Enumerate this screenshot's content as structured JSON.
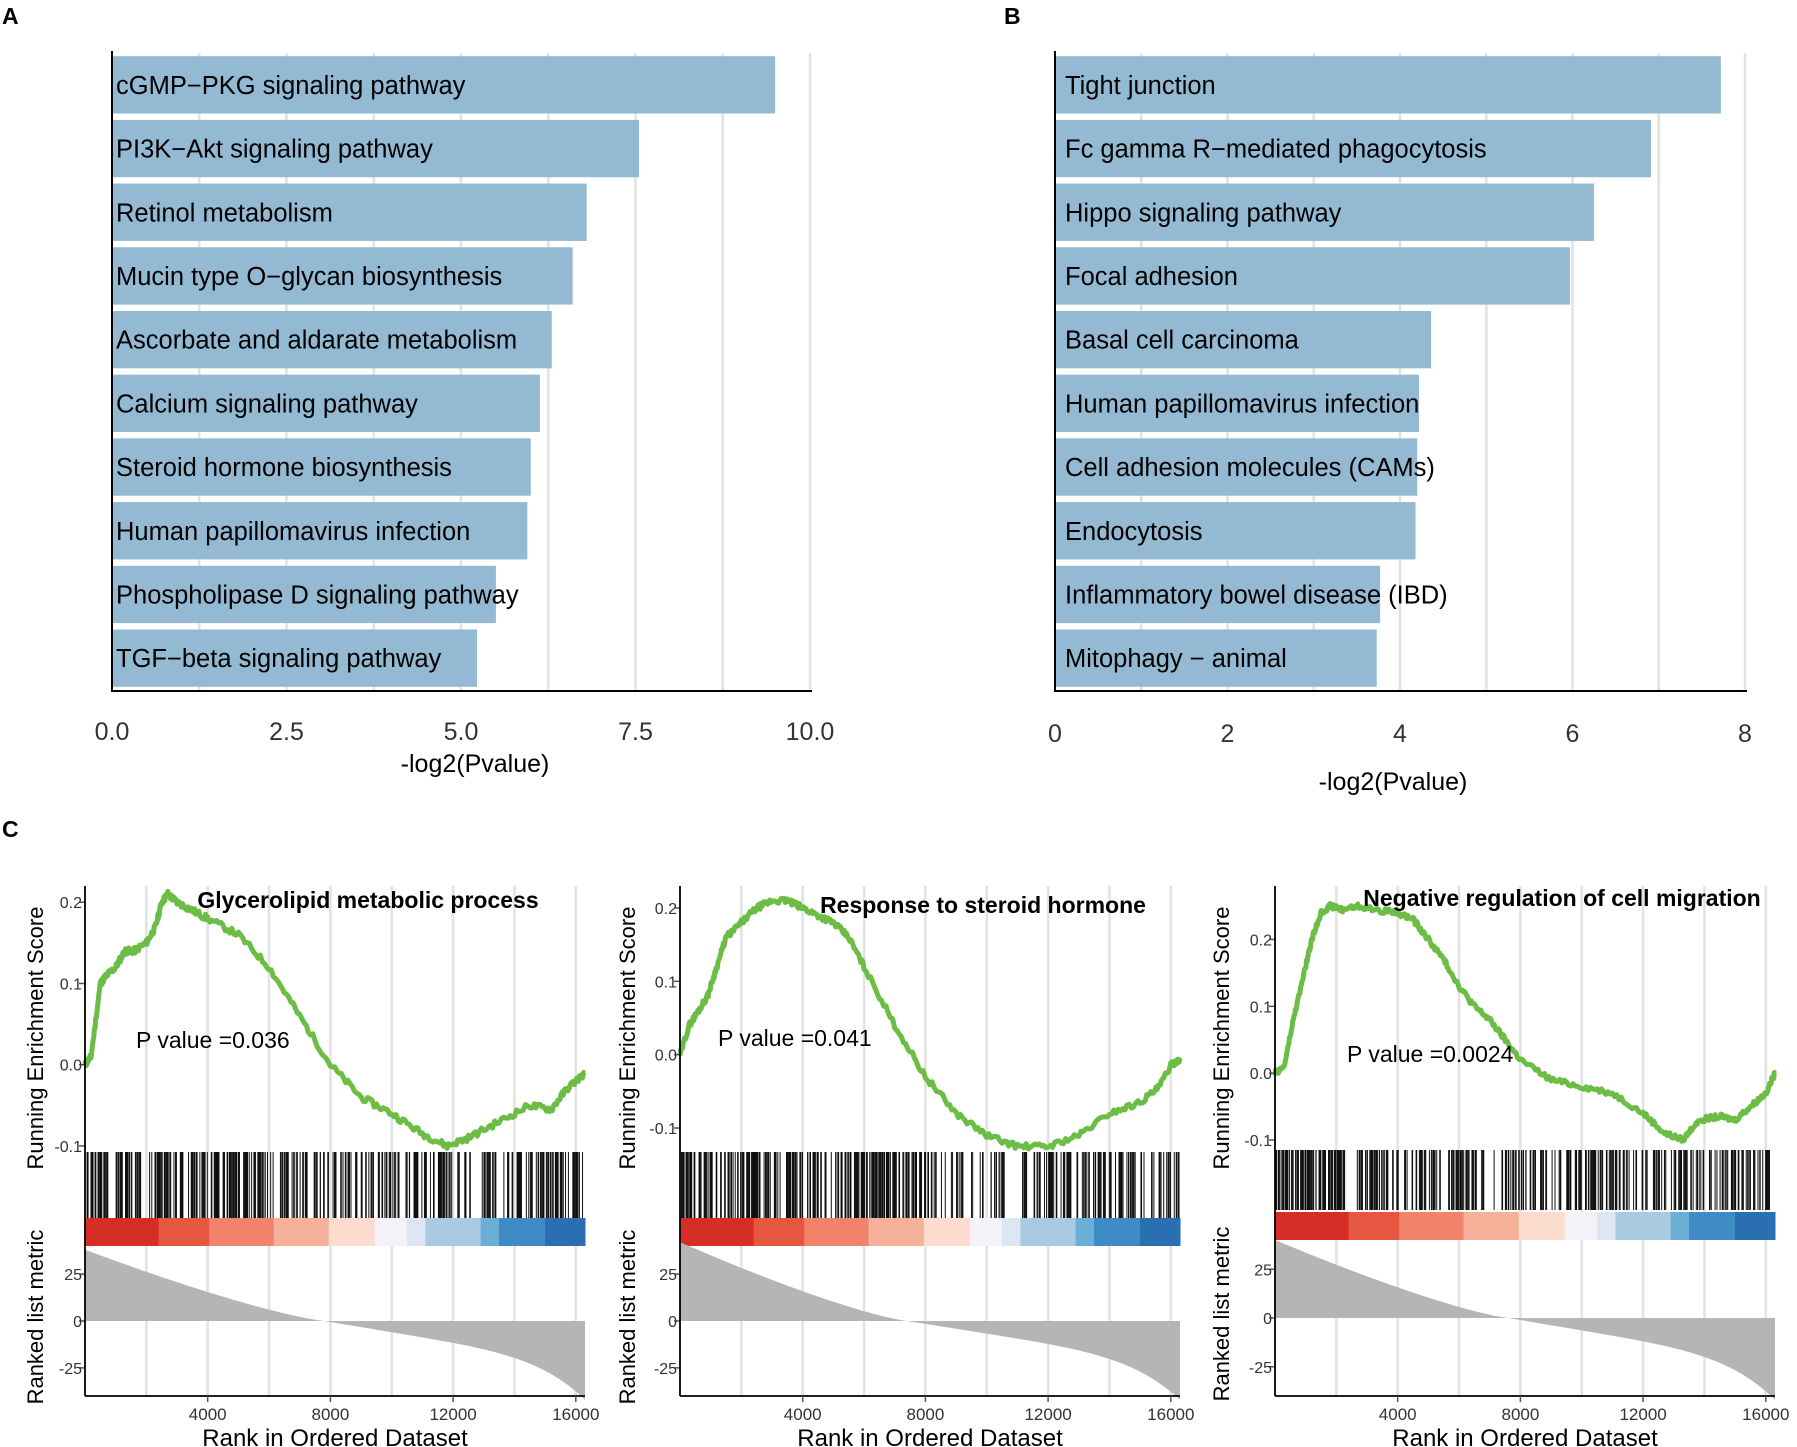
{
  "panel_labels": [
    "A",
    "B",
    "C"
  ],
  "colors": {
    "bar": "#93b9d3",
    "grid": "#e2e2e2",
    "axis": "#000000",
    "curve": "#6cbd45",
    "metric_fill": "#b5b5b5",
    "heat": [
      "#d62d26",
      "#e65741",
      "#f0836a",
      "#f6b19a",
      "#fbdccf",
      "#f2f2f8",
      "#dde6f2",
      "#a9cbe1",
      "#6baed6",
      "#3f8cc4",
      "#2a6fb0"
    ]
  },
  "chart_data": [
    {
      "id": "A",
      "type": "bar",
      "orientation": "horizontal",
      "categories": [
        "cGMP−PKG signaling pathway",
        "PI3K−Akt signaling pathway",
        "Retinol metabolism",
        "Mucin type O−glycan biosynthesis",
        "Ascorbate and aldarate metabolism",
        "Calcium signaling pathway",
        "Steroid hormone biosynthesis",
        "Human papillomavirus infection",
        "Phospholipase D signaling pathway",
        "TGF−beta signaling pathway"
      ],
      "values": [
        9.5,
        7.55,
        6.8,
        6.6,
        6.3,
        6.13,
        6.0,
        5.95,
        5.5,
        5.23
      ],
      "xlabel": "-log2(Pvalue)",
      "xlim": [
        0,
        10.0
      ],
      "xticks": [
        0,
        2.5,
        5,
        7.5,
        10
      ],
      "xtick_labels": [
        "0.0",
        "2.5",
        "5.0",
        "7.5",
        "10.0"
      ],
      "grid": true
    },
    {
      "id": "B",
      "type": "bar",
      "orientation": "horizontal",
      "categories": [
        "Tight junction",
        "Fc gamma R−mediated phagocytosis",
        "Hippo signaling pathway",
        "Focal adhesion",
        "Basal cell carcinoma",
        "Human papillomavirus infection",
        "Cell adhesion molecules (CAMs)",
        "Endocytosis",
        "Inflammatory bowel disease (IBD)",
        "Mitophagy − animal"
      ],
      "values": [
        7.72,
        6.91,
        6.25,
        5.97,
        4.36,
        4.22,
        4.2,
        4.18,
        3.77,
        3.73
      ],
      "xlabel": "-log2(Pvalue)",
      "xlim": [
        0,
        8
      ],
      "xticks": [
        0,
        2,
        4,
        6,
        8
      ],
      "xtick_labels": [
        "0",
        "2",
        "4",
        "6",
        "8"
      ],
      "grid": true
    },
    {
      "id": "C1",
      "type": "line",
      "title": "Glycerolipid metabolic process",
      "annotation": "P value =0.036",
      "ylabel_top": "Running Enrichment Score",
      "ylabel_bottom": "Ranked list metric",
      "xlabel": "Rank in Ordered Dataset",
      "xlim": [
        0,
        16300
      ],
      "xticks": [
        4000,
        8000,
        12000,
        16000
      ],
      "xtick_labels": [
        "4000",
        "8000",
        "12000",
        "16000"
      ],
      "es_ylim": [
        -0.105,
        0.22
      ],
      "es_yticks": [
        -0.1,
        0.0,
        0.1,
        0.2
      ],
      "es_ytick_labels": [
        "-0.1",
        "0.0",
        "0.1",
        "0.2"
      ],
      "es_points": [
        [
          0,
          0
        ],
        [
          200,
          0.01
        ],
        [
          500,
          0.1
        ],
        [
          700,
          0.11
        ],
        [
          1000,
          0.12
        ],
        [
          1300,
          0.14
        ],
        [
          1600,
          0.14
        ],
        [
          2000,
          0.15
        ],
        [
          2300,
          0.17
        ],
        [
          2500,
          0.2
        ],
        [
          2700,
          0.21
        ],
        [
          3000,
          0.2
        ],
        [
          3500,
          0.19
        ],
        [
          4000,
          0.18
        ],
        [
          5000,
          0.16
        ],
        [
          6000,
          0.12
        ],
        [
          7000,
          0.06
        ],
        [
          8000,
          0.0
        ],
        [
          9000,
          -0.04
        ],
        [
          10000,
          -0.06
        ],
        [
          11000,
          -0.085
        ],
        [
          11800,
          -0.1
        ],
        [
          12500,
          -0.09
        ],
        [
          13500,
          -0.07
        ],
        [
          14500,
          -0.05
        ],
        [
          15200,
          -0.055
        ],
        [
          15700,
          -0.03
        ],
        [
          16300,
          -0.01
        ]
      ],
      "metric_ylim": [
        -40,
        40
      ],
      "metric_yticks": [
        25,
        0,
        -25
      ],
      "metric_ytick_labels": [
        "25",
        "0",
        "-25"
      ],
      "metric_start": 38,
      "metric_end": -42,
      "metric_zero_rank": 7800
    },
    {
      "id": "C2",
      "type": "line",
      "title": "Response to steroid hormone",
      "annotation": "P value =0.041",
      "ylabel_top": "Running Enrichment Score",
      "ylabel_bottom": "Ranked list metric",
      "xlabel": "Rank in Ordered Dataset",
      "xlim": [
        0,
        16300
      ],
      "xticks": [
        4000,
        8000,
        12000,
        16000
      ],
      "xtick_labels": [
        "4000",
        "8000",
        "12000",
        "16000"
      ],
      "es_ylim": [
        -0.13,
        0.23
      ],
      "es_yticks": [
        -0.1,
        0.0,
        0.1,
        0.2
      ],
      "es_ytick_labels": [
        "-0.1",
        "0.0",
        "0.1",
        "0.2"
      ],
      "es_points": [
        [
          0,
          0
        ],
        [
          300,
          0.04
        ],
        [
          600,
          0.06
        ],
        [
          900,
          0.08
        ],
        [
          1200,
          0.12
        ],
        [
          1500,
          0.16
        ],
        [
          2000,
          0.18
        ],
        [
          2500,
          0.2
        ],
        [
          3000,
          0.21
        ],
        [
          3500,
          0.21
        ],
        [
          4000,
          0.2
        ],
        [
          4500,
          0.19
        ],
        [
          5000,
          0.18
        ],
        [
          5500,
          0.16
        ],
        [
          6000,
          0.12
        ],
        [
          7000,
          0.04
        ],
        [
          8000,
          -0.03
        ],
        [
          9000,
          -0.08
        ],
        [
          10000,
          -0.11
        ],
        [
          11000,
          -0.125
        ],
        [
          12000,
          -0.125
        ],
        [
          13000,
          -0.11
        ],
        [
          14000,
          -0.08
        ],
        [
          15000,
          -0.065
        ],
        [
          15600,
          -0.045
        ],
        [
          16000,
          -0.015
        ],
        [
          16300,
          -0.005
        ]
      ],
      "metric_ylim": [
        -40,
        40
      ],
      "metric_yticks": [
        25,
        0,
        -25
      ],
      "metric_ytick_labels": [
        "25",
        "0",
        "-25"
      ],
      "metric_start": 42,
      "metric_end": -42,
      "metric_zero_rank": 7400
    },
    {
      "id": "C3",
      "type": "line",
      "title": "Negative regulation of cell migration",
      "annotation": "P value =0.0024",
      "ylabel_top": "Running Enrichment Score",
      "ylabel_bottom": "Ranked list metric",
      "xlabel": "Rank in Ordered Dataset",
      "xlim": [
        0,
        16300
      ],
      "xticks": [
        4000,
        8000,
        12000,
        16000
      ],
      "xtick_labels": [
        "4000",
        "8000",
        "12000",
        "16000"
      ],
      "es_ylim": [
        -0.115,
        0.28
      ],
      "es_yticks": [
        -0.1,
        0.0,
        0.1,
        0.2
      ],
      "es_ytick_labels": [
        "-0.1",
        "0.0",
        "0.1",
        "0.2"
      ],
      "es_points": [
        [
          0,
          0
        ],
        [
          300,
          0.01
        ],
        [
          600,
          0.08
        ],
        [
          900,
          0.14
        ],
        [
          1200,
          0.2
        ],
        [
          1500,
          0.24
        ],
        [
          1800,
          0.25
        ],
        [
          2200,
          0.245
        ],
        [
          2700,
          0.25
        ],
        [
          3200,
          0.245
        ],
        [
          4000,
          0.24
        ],
        [
          4500,
          0.23
        ],
        [
          5000,
          0.2
        ],
        [
          5500,
          0.17
        ],
        [
          6000,
          0.13
        ],
        [
          6500,
          0.1
        ],
        [
          7000,
          0.08
        ],
        [
          7500,
          0.05
        ],
        [
          8000,
          0.02
        ],
        [
          9000,
          -0.01
        ],
        [
          10000,
          -0.02
        ],
        [
          11000,
          -0.03
        ],
        [
          12000,
          -0.06
        ],
        [
          12700,
          -0.09
        ],
        [
          13300,
          -0.1
        ],
        [
          13800,
          -0.07
        ],
        [
          14500,
          -0.065
        ],
        [
          15000,
          -0.07
        ],
        [
          15500,
          -0.05
        ],
        [
          16000,
          -0.03
        ],
        [
          16300,
          0.0
        ]
      ],
      "metric_ylim": [
        -40,
        40
      ],
      "metric_yticks": [
        25,
        0,
        -25
      ],
      "metric_ytick_labels": [
        "25",
        "0",
        "-25"
      ],
      "metric_start": 40,
      "metric_end": -42,
      "metric_zero_rank": 7600
    }
  ]
}
